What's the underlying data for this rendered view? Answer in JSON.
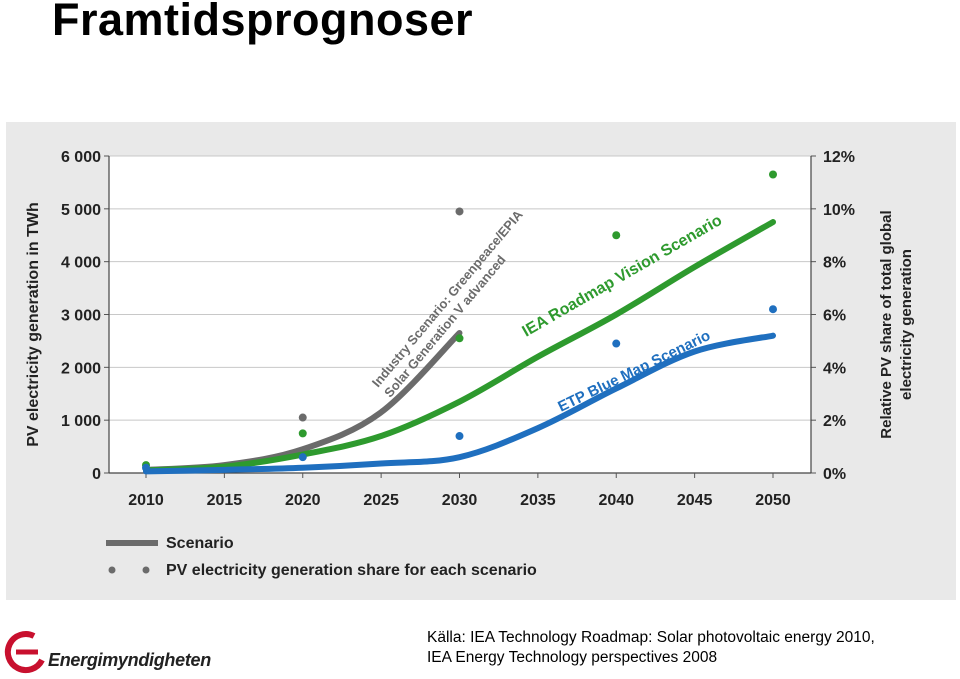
{
  "slide": {
    "title": "Framtidsprognoser",
    "source_line1": "Källa: IEA  Technology Roadmap: Solar photovoltaic energy 2010,",
    "source_line2": "IEA Energy Technology perspectives 2008",
    "logo_text": "Energimyndigheten",
    "logo_color": "#c8102e"
  },
  "chart_data": {
    "type": "line",
    "ylabel": "PV electricity generation in TWh",
    "y2label": "Relative PV share of total global electricity generation",
    "x_ticks": [
      "2010",
      "2015",
      "2020",
      "2025",
      "2030",
      "2035",
      "2040",
      "2045",
      "2050"
    ],
    "y_ticks": [
      "0",
      "1 000",
      "2 000",
      "3 000",
      "4 000",
      "5 000",
      "6 000"
    ],
    "y2_ticks": [
      "0%",
      "2%",
      "4%",
      "6%",
      "8%",
      "10%",
      "12%"
    ],
    "xlim": [
      2010,
      2050
    ],
    "ylim": [
      0,
      6000
    ],
    "y2lim": [
      0,
      12
    ],
    "grid": true,
    "legend": [
      {
        "label": "Scenario",
        "kind": "line"
      },
      {
        "label": "PV electricity generation share for each scenario",
        "kind": "dots"
      }
    ],
    "series": [
      {
        "name": "Industry Scenario: Greenpeace/EPIA Solar Generation V advanced",
        "label_lines": [
          "Industry Scenario: Greenpeace/EPIA",
          "Solar Generation V advanced"
        ],
        "color": "#6b6b6b",
        "x": [
          2010,
          2015,
          2020,
          2025,
          2030
        ],
        "values": [
          60,
          150,
          450,
          1150,
          2650
        ],
        "share_points": [
          {
            "x": 2020,
            "y": 2.1
          },
          {
            "x": 2030,
            "y": 9.9
          }
        ]
      },
      {
        "name": "IEA Roadmap Vision Scenario",
        "label_lines": [
          "IEA Roadmap Vision Scenario"
        ],
        "color": "#2e9a2e",
        "x": [
          2010,
          2015,
          2020,
          2025,
          2030,
          2035,
          2040,
          2045,
          2050
        ],
        "values": [
          50,
          120,
          350,
          700,
          1350,
          2200,
          3000,
          3900,
          4750
        ],
        "share_points": [
          {
            "x": 2010,
            "y": 0.3
          },
          {
            "x": 2020,
            "y": 1.5
          },
          {
            "x": 2030,
            "y": 5.1
          },
          {
            "x": 2040,
            "y": 9.0
          },
          {
            "x": 2050,
            "y": 11.3
          }
        ]
      },
      {
        "name": "ETP Blue Map Scenario",
        "label_lines": [
          "ETP Blue Map Scenario"
        ],
        "color": "#1f6fbf",
        "x": [
          2010,
          2015,
          2020,
          2025,
          2030,
          2035,
          2040,
          2045,
          2050
        ],
        "values": [
          30,
          60,
          100,
          180,
          300,
          850,
          1600,
          2300,
          2600
        ],
        "share_points": [
          {
            "x": 2010,
            "y": 0.2
          },
          {
            "x": 2020,
            "y": 0.6
          },
          {
            "x": 2030,
            "y": 1.4
          },
          {
            "x": 2040,
            "y": 4.9
          },
          {
            "x": 2050,
            "y": 6.2
          }
        ]
      }
    ]
  }
}
